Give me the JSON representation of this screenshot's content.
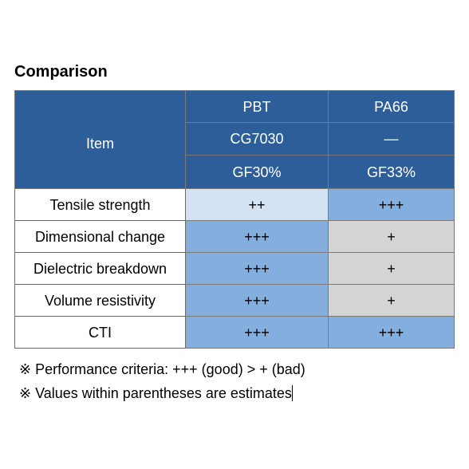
{
  "title": "Comparison",
  "table": {
    "item_header": "Item",
    "columns": [
      {
        "material": "PBT",
        "grade": "CG7030",
        "filler": "GF30%"
      },
      {
        "material": "PA66",
        "grade": "—",
        "filler": "GF33%"
      }
    ],
    "rows": [
      {
        "label": "Tensile strength",
        "values": [
          "++",
          "+++"
        ]
      },
      {
        "label": "Dimensional change",
        "values": [
          "+++",
          "+"
        ]
      },
      {
        "label": "Dielectric breakdown",
        "values": [
          "+++",
          "+"
        ]
      },
      {
        "label": "Volume resistivity",
        "values": [
          "+++",
          "+"
        ]
      },
      {
        "label": "CTI",
        "values": [
          "+++",
          "+++"
        ]
      }
    ]
  },
  "notes": [
    "※ Performance criteria: +++ (good) > + (bad)",
    "※ Values within parentheses are estimates"
  ],
  "colors": {
    "header_blue": "#2e5e99",
    "cell_light_blue": "#d4e2f3",
    "cell_mid_blue": "#83aedd",
    "cell_gray": "#d4d4d4"
  }
}
